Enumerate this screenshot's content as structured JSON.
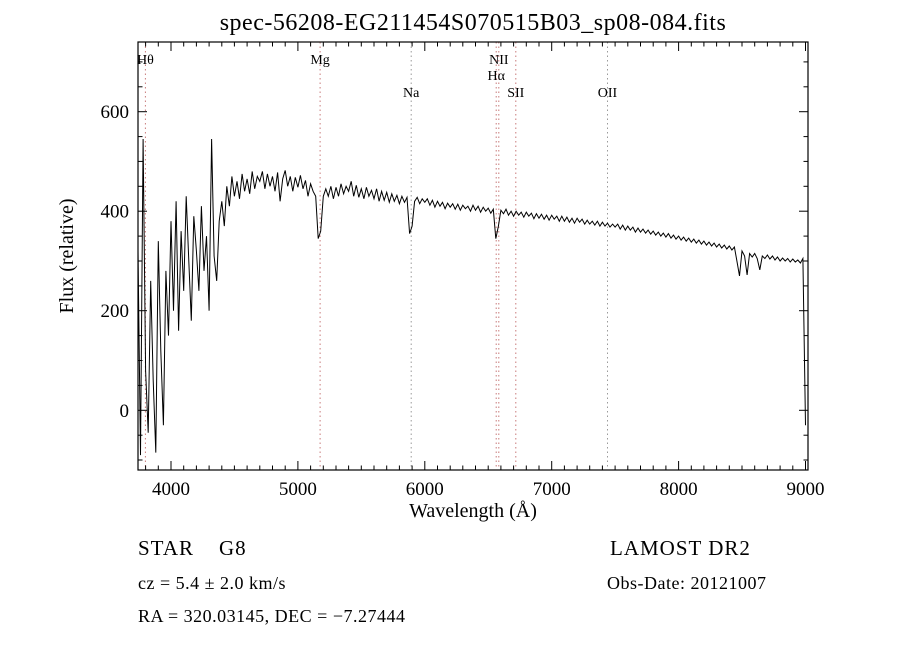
{
  "chart_data": {
    "type": "line",
    "title": "spec-56208-EG211454S070515B03_sp08-084.fits",
    "xlabel": "Wavelength (Å)",
    "ylabel": "Flux (relative)",
    "xlim": [
      3740,
      9020
    ],
    "ylim": [
      -120,
      740
    ],
    "x_ticks": [
      4000,
      5000,
      6000,
      7000,
      8000,
      9000
    ],
    "y_ticks": [
      0,
      200,
      400,
      600
    ],
    "x_minor_step": 100,
    "y_minor_step": 50,
    "grid": false,
    "legend": "none",
    "line_color": "#000000",
    "series": [
      {
        "name": "spectrum",
        "x_start": 3740,
        "x_step": 20,
        "flux": [
          320,
          -90,
          545,
          80,
          -45,
          260,
          60,
          -85,
          340,
          120,
          -30,
          280,
          150,
          380,
          200,
          420,
          160,
          360,
          240,
          430,
          300,
          180,
          390,
          320,
          240,
          410,
          280,
          350,
          200,
          545,
          310,
          260,
          380,
          420,
          370,
          450,
          410,
          470,
          430,
          460,
          425,
          475,
          440,
          465,
          435,
          480,
          445,
          470,
          460,
          480,
          445,
          475,
          450,
          470,
          440,
          478,
          420,
          465,
          482,
          450,
          470,
          440,
          468,
          448,
          472,
          445,
          462,
          430,
          455,
          440,
          430,
          345,
          360,
          430,
          445,
          430,
          450,
          425,
          448,
          430,
          455,
          435,
          450,
          440,
          460,
          430,
          452,
          428,
          445,
          425,
          448,
          430,
          442,
          425,
          445,
          420,
          440,
          422,
          438,
          418,
          435,
          420,
          432,
          415,
          430,
          418,
          428,
          355,
          370,
          420,
          428,
          415,
          425,
          418,
          425,
          412,
          422,
          408,
          420,
          410,
          418,
          405,
          416,
          408,
          415,
          404,
          414,
          402,
          412,
          405,
          410,
          400,
          412,
          402,
          410,
          398,
          408,
          400,
          406,
          396,
          404,
          345,
          370,
          402,
          395,
          404,
          392,
          400,
          390,
          400,
          392,
          398,
          388,
          398,
          390,
          396,
          385,
          395,
          386,
          394,
          384,
          392,
          382,
          392,
          384,
          390,
          380,
          390,
          380,
          388,
          378,
          386,
          376,
          386,
          378,
          384,
          374,
          382,
          374,
          380,
          372,
          380,
          370,
          378,
          370,
          376,
          368,
          374,
          368,
          374,
          364,
          372,
          362,
          370,
          362,
          368,
          358,
          366,
          358,
          364,
          356,
          362,
          354,
          360,
          352,
          358,
          350,
          356,
          348,
          355,
          346,
          352,
          344,
          350,
          342,
          348,
          340,
          346,
          338,
          344,
          336,
          342,
          334,
          340,
          332,
          338,
          330,
          336,
          328,
          334,
          326,
          332,
          324,
          330,
          322,
          328,
          300,
          270,
          320,
          310,
          272,
          315,
          308,
          315,
          305,
          282,
          310,
          305,
          312,
          304,
          310,
          302,
          308,
          300,
          306,
          300,
          305,
          298,
          304,
          298,
          302,
          296,
          305,
          -30
        ]
      }
    ],
    "spectral_lines": [
      {
        "label": "Hθ",
        "wavelength": 3798,
        "row": 0,
        "color": "#c97b7b"
      },
      {
        "label": "Mg",
        "wavelength": 5175,
        "row": 0,
        "color": "#c97b7b"
      },
      {
        "label": "Na",
        "wavelength": 5893,
        "row": 2,
        "color": "#9a9a9a"
      },
      {
        "label": "NII",
        "wavelength": 6583,
        "row": 0,
        "color": "#c97b7b"
      },
      {
        "label": "Hα",
        "wavelength": 6563,
        "row": 1,
        "color": "#c97b7b"
      },
      {
        "label": "SII",
        "wavelength": 6717,
        "row": 2,
        "color": "#c97b7b"
      },
      {
        "label": "OII",
        "wavelength": 7440,
        "row": 2,
        "color": "#9a9a9a"
      }
    ]
  },
  "footer": {
    "class_line": "STAR    G8",
    "survey": "LAMOST DR2",
    "cz_line": "cz = 5.4 ± 2.0 km/s",
    "obs_date": "Obs-Date: 20121007",
    "radec_line": "RA = 320.03145, DEC = −7.27444"
  }
}
